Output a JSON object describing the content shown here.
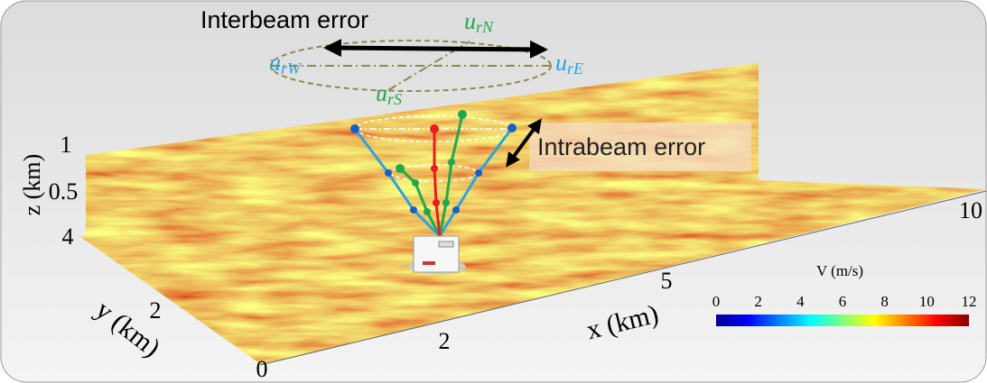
{
  "annotations": {
    "interbeam": "Interbeam error",
    "intrabeam": "Intrabeam error",
    "beams": {
      "north": {
        "base": "u",
        "sub": "rN"
      },
      "west": {
        "base": "u",
        "sub": "rW"
      },
      "east": {
        "base": "u",
        "sub": "rE"
      },
      "south": {
        "base": "u",
        "sub": "rS"
      }
    }
  },
  "z_axis": {
    "label": "z (km)",
    "ticks": [
      "1",
      "0.5"
    ]
  },
  "y_axis": {
    "label": "y (km)",
    "ticks": [
      "4",
      "2",
      "0"
    ]
  },
  "x_axis": {
    "label": "x (km)",
    "ticks": [
      "2",
      "5",
      "10"
    ]
  },
  "colorbar": {
    "label": "V (m/s)",
    "ticks": [
      "0",
      "2",
      "4",
      "6",
      "8",
      "10",
      "12"
    ]
  }
}
